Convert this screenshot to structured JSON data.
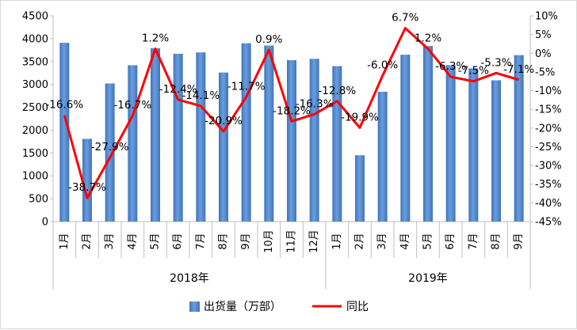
{
  "chart_data": {
    "type": "bar",
    "categories": [
      "1月",
      "2月",
      "3月",
      "4月",
      "5月",
      "6月",
      "7月",
      "8月",
      "9月",
      "10月",
      "11月",
      "12月",
      "1月",
      "2月",
      "3月",
      "4月",
      "5月",
      "6月",
      "7月",
      "8月",
      "9月"
    ],
    "groups": [
      {
        "label": "2018年",
        "count": 12
      },
      {
        "label": "2019年",
        "count": 9
      }
    ],
    "series": [
      {
        "name": "出货量（万部）",
        "type": "bar",
        "axis": "left",
        "color": "#5b8fd2",
        "values": [
          3910,
          1810,
          3020,
          3420,
          3790,
          3670,
          3700,
          3260,
          3900,
          3850,
          3530,
          3560,
          3400,
          1450,
          2840,
          3650,
          3840,
          3420,
          3350,
          3090,
          3640
        ]
      },
      {
        "name": "同比",
        "type": "line",
        "axis": "right",
        "color": "#ff0000",
        "values": [
          -16.6,
          -38.7,
          -27.9,
          -16.7,
          1.2,
          -12.4,
          -14.1,
          -20.9,
          -11.7,
          0.9,
          -18.2,
          -16.3,
          -12.8,
          -19.9,
          -6.0,
          6.7,
          1.2,
          -6.3,
          -7.5,
          -5.3,
          -7.1
        ],
        "labels": [
          "-16.6%",
          "-38.7%",
          "-27.9%",
          "-16.7%",
          "1.2%",
          "-12.4%",
          "-14.1%",
          "-20.9%",
          "-11.7%",
          "0.9%",
          "-18.2%",
          "-16.3%",
          "-12.8%",
          "-19.9%",
          "-6.0%",
          "6.7%",
          "1.2%",
          "-6.3%",
          "-7.5%",
          "-5.3%",
          "-7.1%"
        ]
      }
    ],
    "y_left": {
      "ylim": [
        0,
        4500
      ],
      "ticks": [
        "0",
        "500",
        "1000",
        "1500",
        "2000",
        "2500",
        "3000",
        "3500",
        "4000",
        "4500"
      ]
    },
    "y_right": {
      "ylim": [
        -45,
        10
      ],
      "ticks": [
        "10%",
        "5%",
        "0%",
        "-5%",
        "-10%",
        "-15%",
        "-20%",
        "-25%",
        "-30%",
        "-35%",
        "-40%",
        "-45%"
      ]
    },
    "legend": {
      "position": "bottom",
      "items": [
        {
          "label": "出货量（万部）",
          "kind": "bar",
          "color": "#5b8fd2"
        },
        {
          "label": "同比",
          "kind": "line",
          "color": "#ff0000"
        }
      ]
    },
    "grid": false
  }
}
